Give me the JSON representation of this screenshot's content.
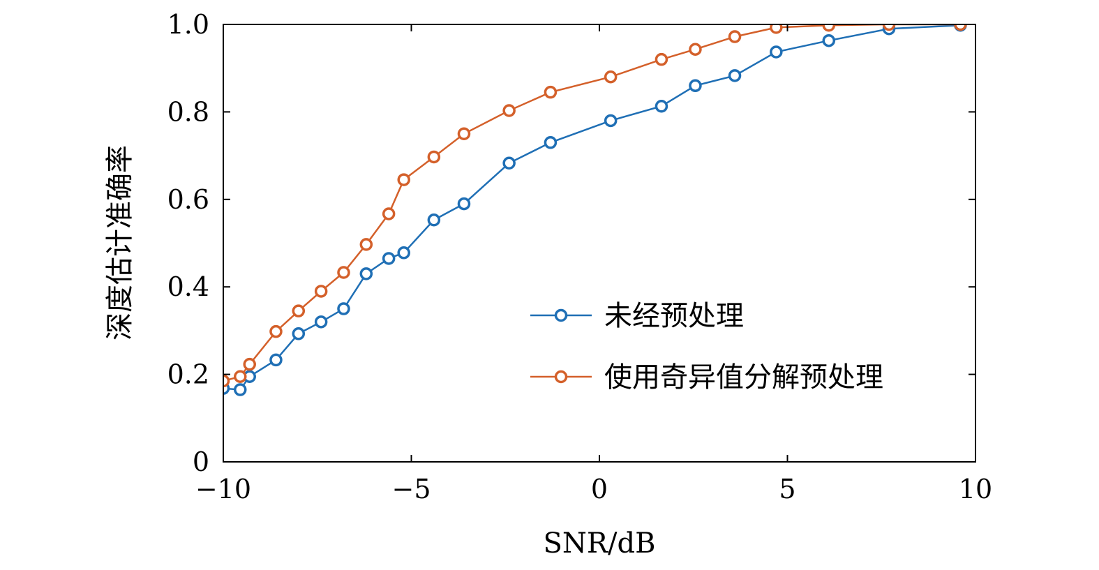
{
  "chart_data": {
    "type": "line",
    "xlabel": "SNR/dB",
    "ylabel": "深度估计准确率",
    "xlim": [
      -10,
      10
    ],
    "ylim": [
      0,
      1.0
    ],
    "xticks": [
      -10,
      -5,
      0,
      5,
      10
    ],
    "xtick_labels": [
      "−10",
      "−5",
      "0",
      "5",
      "10"
    ],
    "yticks": [
      0,
      0.2,
      0.4,
      0.6,
      0.8,
      1.0
    ],
    "ytick_labels": [
      "0",
      "0.2",
      "0.4",
      "0.6",
      "0.8",
      "1.0"
    ],
    "legend": {
      "position": "lower-right"
    },
    "grid": false,
    "series": [
      {
        "name": "未经预处理",
        "color": "#1f6fb5",
        "marker": "circle",
        "x": [
          -10,
          -9.55,
          -9.3,
          -8.6,
          -8.0,
          -7.4,
          -6.8,
          -6.2,
          -5.6,
          -5.2,
          -4.4,
          -3.6,
          -2.4,
          -1.3,
          0.3,
          1.65,
          2.55,
          3.6,
          4.7,
          6.1,
          7.7,
          9.6
        ],
        "y": [
          0.168,
          0.165,
          0.195,
          0.233,
          0.293,
          0.32,
          0.35,
          0.43,
          0.465,
          0.478,
          0.553,
          0.59,
          0.683,
          0.73,
          0.78,
          0.813,
          0.86,
          0.883,
          0.937,
          0.963,
          0.99,
          0.998
        ]
      },
      {
        "name": "使用奇异值分解预处理",
        "color": "#d4602a",
        "marker": "circle",
        "x": [
          -10,
          -9.55,
          -9.3,
          -8.6,
          -8.0,
          -7.4,
          -6.8,
          -6.2,
          -5.6,
          -5.2,
          -4.4,
          -3.6,
          -2.4,
          -1.3,
          0.3,
          1.65,
          2.55,
          3.6,
          4.7,
          6.1,
          7.7,
          9.6
        ],
        "y": [
          0.185,
          0.195,
          0.223,
          0.298,
          0.345,
          0.39,
          0.433,
          0.497,
          0.567,
          0.645,
          0.697,
          0.75,
          0.803,
          0.845,
          0.88,
          0.92,
          0.943,
          0.972,
          0.993,
          0.998,
          1.0,
          1.0
        ]
      }
    ]
  }
}
